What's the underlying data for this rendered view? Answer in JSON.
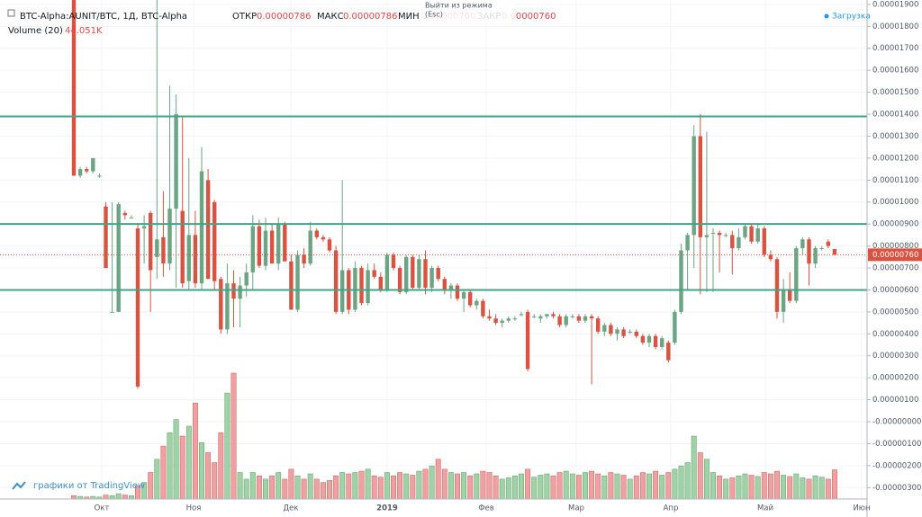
{
  "header": {
    "symbol": "BTC-Alpha:AUNIT/BTC, 1Д, BTC-Alpha",
    "open_label": "ОТКР",
    "open": "0.00000786",
    "high_label": "МАКС",
    "high": "0.00000786",
    "low_label": "МИН",
    "low": "0.00000760",
    "close_label": "ЗАКР",
    "close": "0.00000760",
    "volume_label": "Volume (20)",
    "loading": "Загрузка",
    "tooltip_line1": "Выйти из режима",
    "tooltip_line2": "(Esc)",
    "branding": "графики от TradingView"
  },
  "chart_data": {
    "type": "candlestick",
    "up_color": "#6ba583",
    "down_color": "#d75442",
    "volume_up_color": "#9fd3a5",
    "volume_down_color": "#f0a0a0",
    "level_color": "#3fa58a",
    "grid": true,
    "x_labels": [
      "Окт",
      "Ноя",
      "Дек",
      "2019",
      "Фев",
      "Мар",
      "Апр",
      "Май",
      "Июн"
    ],
    "ylim": [
      -3.52e-06,
      1.92e-05
    ],
    "yticks": [
      {
        "value": 1.9e-05,
        "label": "0.00001900"
      },
      {
        "value": 1.8e-05,
        "label": "0.00001800"
      },
      {
        "value": 1.7e-05,
        "label": "0.00001700"
      },
      {
        "value": 1.6e-05,
        "label": "0.00001600"
      },
      {
        "value": 1.5e-05,
        "label": "0.00001500"
      },
      {
        "value": 1.4e-05,
        "label": "0.00001400"
      },
      {
        "value": 1.3e-05,
        "label": "0.00001300"
      },
      {
        "value": 1.2e-05,
        "label": "0.00001200"
      },
      {
        "value": 1.1e-05,
        "label": "0.00001100"
      },
      {
        "value": 1e-05,
        "label": "0.00001000"
      },
      {
        "value": 9e-06,
        "label": "0.00000900"
      },
      {
        "value": 8e-06,
        "label": "0.00000800"
      },
      {
        "value": 7e-06,
        "label": "0.00000700"
      },
      {
        "value": 6e-06,
        "label": "0.00000600"
      },
      {
        "value": 5e-06,
        "label": "0.00000500"
      },
      {
        "value": 4e-06,
        "label": "0.00000400"
      },
      {
        "value": 3e-06,
        "label": "0.00000300"
      },
      {
        "value": 2e-06,
        "label": "0.00000200"
      },
      {
        "value": 1e-06,
        "label": "0.00000100"
      },
      {
        "value": 0,
        "label": "-0.00000000"
      },
      {
        "value": -1e-06,
        "label": "-0.00000100"
      },
      {
        "value": -2e-06,
        "label": "-0.00000200"
      },
      {
        "value": -3e-06,
        "label": "-0.00000300"
      }
    ],
    "levels": [
      1.39e-05,
      9e-06,
      6e-06
    ],
    "last_price": {
      "value": 7.6e-06,
      "label": "0.00000760"
    },
    "open": [
      1.95e-05,
      1.12e-05,
      1.15e-05,
      1.14e-05,
      1.12e-05,
      9.8e-06,
      5e-06,
      5e-06,
      9.5e-06,
      9.3e-06,
      8.8e-06,
      8.8e-06,
      9.5e-06,
      7.5e-06,
      8.4e-06,
      7.2e-06,
      9.7e-06,
      9.6e-06,
      6.4e-06,
      8.5e-06,
      6.3e-06,
      1.1e-05,
      1e-05,
      6.5e-06,
      4.2e-06,
      6.3e-06,
      5.6e-06,
      6.2e-06,
      6.8e-06,
      8.9e-06,
      7.1e-06,
      8.7e-06,
      7.2e-06,
      9e-06,
      7.3e-06,
      5.1e-06,
      7.6e-06,
      7.2e-06,
      8.7e-06,
      8.4e-06,
      8.3e-06,
      7.8e-06,
      5e-06,
      6.9e-06,
      5.1e-06,
      7e-06,
      5.4e-06,
      6.9e-06,
      6.6e-06,
      6e-06,
      7.6e-06,
      7e-06,
      5.9e-06,
      7.5e-06,
      6.1e-06,
      7.4e-06,
      6.1e-06,
      7e-06,
      6.5e-06,
      6e-06,
      6.2e-06,
      5.6e-06,
      5.9e-06,
      5.3e-06,
      5.5e-06,
      4.8e-06,
      4.7e-06,
      4.5e-06,
      4.6e-06,
      4.7e-06,
      4.9e-06,
      5e-06,
      4.8e-06,
      4.7e-06,
      4.8e-06,
      4.9e-06,
      4.8e-06,
      4.4e-06,
      4.8e-06,
      4.8e-06,
      4.6e-06,
      4.8e-06,
      4.7e-06,
      4.1e-06,
      4.4e-06,
      4e-06,
      4.2e-06,
      4.1e-06,
      4.1e-06,
      3.9e-06,
      3.6e-06,
      3.9e-06,
      3.4e-06,
      3.6e-06,
      3.6e-06,
      5e-06,
      7.8e-06,
      8.5e-06,
      1.3e-05,
      8.4e-06,
      8.6e-06,
      8.6e-06,
      8.5e-06,
      8.5e-06,
      7.9e-06,
      8.4e-06,
      8.9e-06,
      8.2e-06,
      8.8e-06,
      7.6e-06,
      7.4e-06,
      5e-06,
      6e-06,
      5.5e-06,
      7.9e-06,
      8.3e-06,
      7.2e-06,
      7.9e-06,
      8.2e-06,
      7.86e-06
    ],
    "high": [
      1.96e-05,
      1.16e-05,
      1.16e-05,
      1.2e-05,
      1.13e-05,
      1e-05,
      1e-05,
      1e-05,
      9.6e-06,
      9.4e-06,
      9e-06,
      9.4e-06,
      9.6e-06,
      1.95e-05,
      1.05e-05,
      1.53e-05,
      1.49e-05,
      1.39e-05,
      1.2e-05,
      9.6e-06,
      1.25e-05,
      1.15e-05,
      1.01e-05,
      6.6e-06,
      7.2e-06,
      6.9e-06,
      6.6e-06,
      7.2e-06,
      9.4e-06,
      9.2e-06,
      9.3e-06,
      9e-06,
      9.3e-06,
      9.1e-06,
      7.6e-06,
      7.8e-06,
      7.9e-06,
      9.1e-06,
      8.8e-06,
      8.5e-06,
      8.4e-06,
      8e-06,
      1.1e-05,
      7e-06,
      7.3e-06,
      7.1e-06,
      7.2e-06,
      7.2e-06,
      6.8e-06,
      7.7e-06,
      7.7e-06,
      7.1e-06,
      7.6e-06,
      7.6e-06,
      7.6e-06,
      7.8e-06,
      7.1e-06,
      7.1e-06,
      6.6e-06,
      6.3e-06,
      6.3e-06,
      6e-06,
      6e-06,
      5.6e-06,
      5.6e-06,
      5.1e-06,
      4.9e-06,
      4.7e-06,
      4.8e-06,
      4.8e-06,
      5e-06,
      5.1e-06,
      4.9e-06,
      4.9e-06,
      4.9e-06,
      5e-06,
      4.9e-06,
      4.9e-06,
      4.9e-06,
      4.9e-06,
      4.9e-06,
      4.9e-06,
      4.8e-06,
      4.5e-06,
      4.5e-06,
      4.3e-06,
      4.3e-06,
      4.2e-06,
      4.2e-06,
      4e-06,
      4e-06,
      4e-06,
      3.9e-06,
      3.7e-06,
      5.1e-06,
      8.1e-06,
      8.6e-06,
      1.35e-05,
      1.4e-05,
      1.32e-05,
      8.8e-06,
      8.7e-06,
      8.6e-06,
      8.7e-06,
      8.8e-06,
      9e-06,
      9e-06,
      9e-06,
      8.9e-06,
      7.8e-06,
      7.5e-06,
      6.5e-06,
      6.8e-06,
      8e-06,
      8.4e-06,
      8.4e-06,
      8e-06,
      8e-06,
      8.3e-06,
      7.86e-06
    ],
    "low": [
      1.12e-05,
      1.11e-05,
      1.13e-05,
      1.13e-05,
      1.11e-05,
      7e-06,
      5e-06,
      5e-06,
      9.2e-06,
      9.3e-06,
      1.5e-06,
      7.2e-06,
      5e-06,
      6.5e-06,
      6.6e-06,
      6.9e-06,
      6.1e-06,
      6.1e-06,
      6e-06,
      6.1e-06,
      6e-06,
      6.5e-06,
      6e-06,
      4e-06,
      4e-06,
      4.3e-06,
      4.3e-06,
      5.7e-06,
      6e-06,
      7e-06,
      6.9e-06,
      7.2e-06,
      6.9e-06,
      7.3e-06,
      5.1e-06,
      5e-06,
      7e-06,
      7.1e-06,
      8.3e-06,
      8.2e-06,
      7.7e-06,
      4.9e-06,
      4.9e-06,
      4.9e-06,
      5e-06,
      5.3e-06,
      5.3e-06,
      6.5e-06,
      5.9e-06,
      5.9e-06,
      6.9e-06,
      5.8e-06,
      5.8e-06,
      6e-06,
      6e-06,
      5.8e-06,
      5.9e-06,
      6.4e-06,
      5.8e-06,
      5.6e-06,
      5.5e-06,
      5e-06,
      5.2e-06,
      5.1e-06,
      4.7e-06,
      4.6e-06,
      4.4e-06,
      4.3e-06,
      4.5e-06,
      4.6e-06,
      4.8e-06,
      2.3e-06,
      4.7e-06,
      4.5e-06,
      4.7e-06,
      4.7e-06,
      4.3e-06,
      4.3e-06,
      4.7e-06,
      4.5e-06,
      4.5e-06,
      1.7e-06,
      4e-06,
      3.9e-06,
      3.9e-06,
      3.7e-06,
      3.8e-06,
      4e-06,
      3.8e-06,
      3.5e-06,
      3.4e-06,
      3.3e-06,
      3.3e-06,
      2.7e-06,
      3.5e-06,
      4.9e-06,
      6e-06,
      7e-06,
      5.8e-06,
      5.9e-06,
      5.9e-06,
      6.8e-06,
      8.4e-06,
      6.7e-06,
      7.8e-06,
      8.3e-06,
      8.1e-06,
      8.1e-06,
      7.5e-06,
      7.3e-06,
      4.7e-06,
      4.5e-06,
      5.4e-06,
      5.4e-06,
      7.6e-06,
      6.2e-06,
      7e-06,
      7.8e-06,
      7.9e-06,
      7.6e-06
    ],
    "close": [
      1.12e-05,
      1.15e-05,
      1.14e-05,
      1.2e-05,
      1.12e-05,
      7e-06,
      5e-06,
      9.9e-06,
      9.4e-06,
      9.3e-06,
      1.6e-06,
      8.9e-06,
      6.9e-06,
      8.3e-06,
      7.2e-06,
      9.7e-06,
      1.4e-05,
      6.3e-06,
      8.5e-06,
      6.3e-06,
      1.14e-05,
      6.5e-06,
      6.4e-06,
      4.2e-06,
      6.3e-06,
      5.6e-06,
      6.2e-06,
      6.8e-06,
      8.9e-06,
      7.1e-06,
      8.7e-06,
      7.2e-06,
      9e-06,
      7.3e-06,
      5.1e-06,
      7.6e-06,
      7.2e-06,
      8.7e-06,
      8.4e-06,
      8.3e-06,
      7.8e-06,
      5e-06,
      6.9e-06,
      5.1e-06,
      7e-06,
      5.4e-06,
      6.9e-06,
      6.6e-06,
      6e-06,
      7.6e-06,
      7e-06,
      5.9e-06,
      7.5e-06,
      6.1e-06,
      7.4e-06,
      6.1e-06,
      7e-06,
      6.5e-06,
      6e-06,
      6.2e-06,
      5.6e-06,
      5.9e-06,
      5.3e-06,
      5.5e-06,
      4.8e-06,
      4.7e-06,
      4.5e-06,
      4.6e-06,
      4.7e-06,
      4.7e-06,
      4.9e-06,
      2.4e-06,
      4.8e-06,
      4.8e-06,
      4.9e-06,
      4.8e-06,
      4.4e-06,
      4.8e-06,
      4.8e-06,
      4.6e-06,
      4.8e-06,
      4.7e-06,
      4.1e-06,
      4.4e-06,
      4e-06,
      4.2e-06,
      3.9e-06,
      4.1e-06,
      3.9e-06,
      3.6e-06,
      3.9e-06,
      3.4e-06,
      3.8e-06,
      2.8e-06,
      5e-06,
      7.8e-06,
      8.5e-06,
      1.3e-05,
      8.4e-06,
      8.5e-06,
      8.6e-06,
      8.5e-06,
      8.5e-06,
      7.9e-06,
      8.4e-06,
      8.9e-06,
      8.2e-06,
      8.8e-06,
      7.6e-06,
      7.4e-06,
      5e-06,
      6e-06,
      5.5e-06,
      7.9e-06,
      8.3e-06,
      7.2e-06,
      7.9e-06,
      7.9e-06,
      8e-06,
      7.6e-06
    ],
    "volume": [
      5000.0,
      4000.0,
      3000.0,
      4000.0,
      3000.0,
      6000.0,
      5000.0,
      8000.0,
      6000.0,
      5000.0,
      20000.0,
      25000.0,
      40000.0,
      60000.0,
      80000.0,
      100000.0,
      120000.0,
      95000.0,
      110000.0,
      145000.0,
      85000.0,
      70000.0,
      55000.0,
      100000.0,
      160000.0,
      190000.0,
      40000.0,
      30000.0,
      40000.0,
      35000.0,
      30000.0,
      35000.0,
      40000.0,
      30000.0,
      45000.0,
      35000.0,
      30000.0,
      38000.0,
      30000.0,
      25000.0,
      28000.0,
      35000.0,
      40000.0,
      38000.0,
      40000.0,
      42000.0,
      45000.0,
      35000.0,
      33000.0,
      40000.0,
      35000.0,
      40000.0,
      38000.0,
      36000.0,
      42000.0,
      45000.0,
      50000.0,
      60000.0,
      45000.0,
      40000.0,
      38000.0,
      40000.0,
      35000.0,
      38000.0,
      42000.0,
      40000.0,
      35000.0,
      30000.0,
      32000.0,
      35000.0,
      38000.0,
      45000.0,
      33000.0,
      36000.0,
      38000.0,
      35000.0,
      40000.0,
      42000.0,
      38000.0,
      36000.0,
      40000.0,
      42000.0,
      38000.0,
      35000.0,
      40000.0,
      38000.0,
      36000.0,
      30000.0,
      35000.0,
      40000.0,
      38000.0,
      42000.0,
      36000.0,
      40000.0,
      45000.0,
      50000.0,
      55000.0,
      95000.0,
      70000.0,
      60000.0,
      40000.0,
      35000.0,
      30000.0,
      32000.0,
      35000.0,
      38000.0,
      36000.0,
      34000.0,
      40000.0,
      38000.0,
      42000.0,
      36000.0,
      34000.0,
      38000.0,
      32000.0,
      30000.0,
      35000.0,
      33000.0,
      30000.0,
      44051.0
    ],
    "volume_value_labels": {
      "119": "44.051K"
    }
  }
}
